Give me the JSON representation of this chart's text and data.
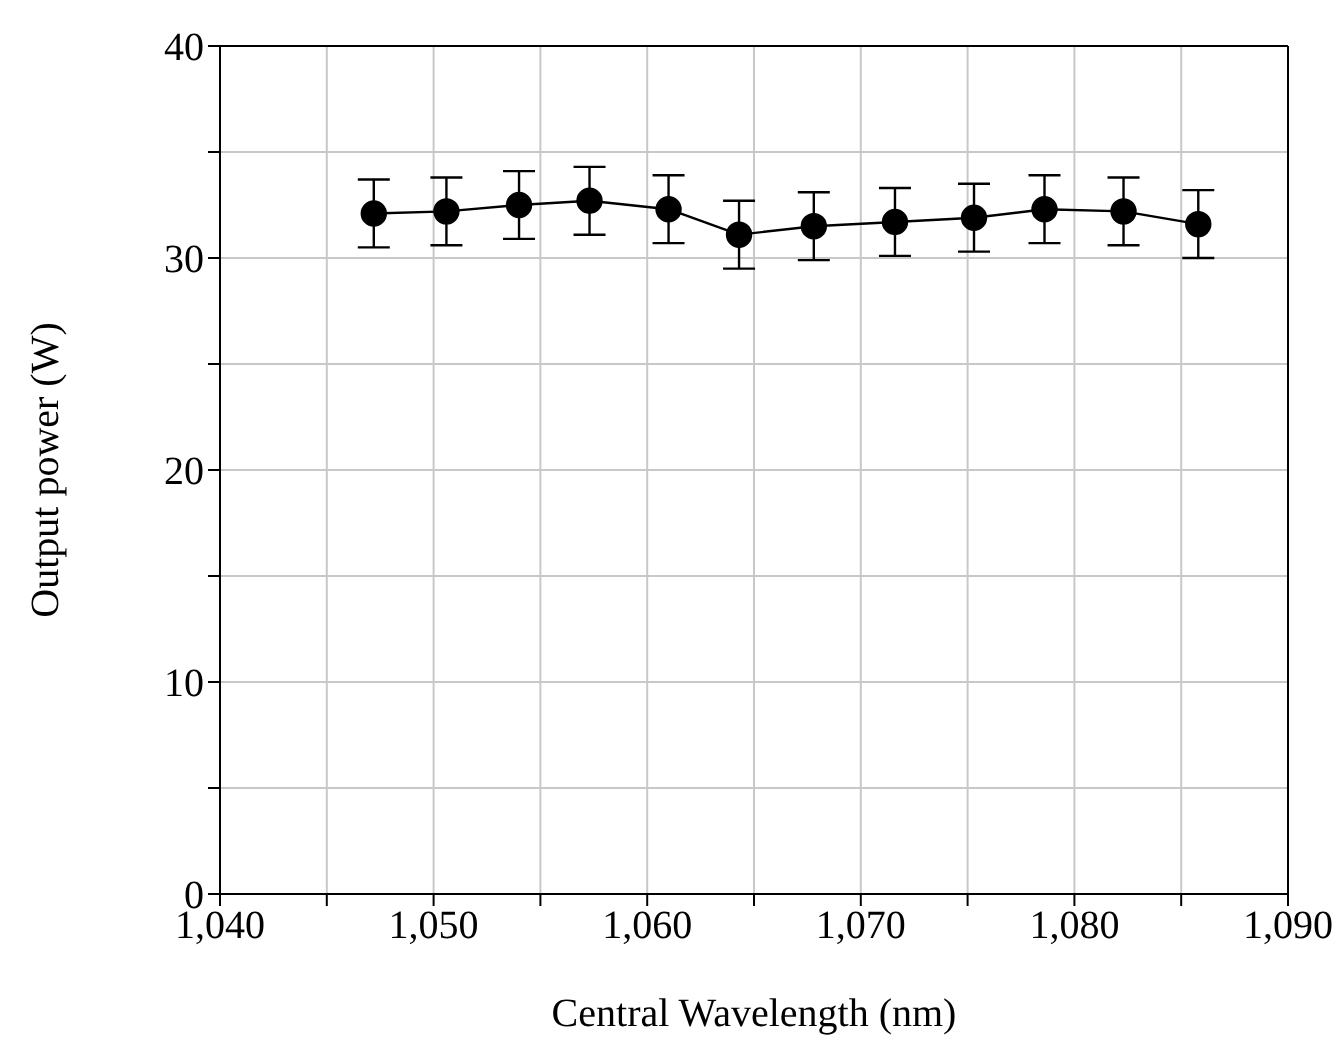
{
  "chart_data": {
    "type": "line",
    "xlabel": "Central Wavelength (nm)",
    "ylabel": "Output power (W)",
    "x": [
      1047.2,
      1050.6,
      1054.0,
      1057.3,
      1061.0,
      1064.3,
      1067.8,
      1071.6,
      1075.3,
      1078.6,
      1082.3,
      1085.8
    ],
    "series": [
      {
        "color": "#000000",
        "values": [
          32.1,
          32.2,
          32.5,
          32.7,
          32.3,
          31.1,
          31.5,
          31.7,
          31.9,
          32.3,
          32.2,
          31.6
        ],
        "errors": [
          1.6,
          1.6,
          1.6,
          1.6,
          1.6,
          1.6,
          1.6,
          1.6,
          1.6,
          1.6,
          1.6,
          1.6
        ]
      }
    ],
    "xlim": [
      1040,
      1090
    ],
    "xticks": [
      {
        "value": 1040,
        "label": "1,040"
      },
      {
        "value": 1045,
        "label": null
      },
      {
        "value": 1050,
        "label": "1,050"
      },
      {
        "value": 1055,
        "label": null
      },
      {
        "value": 1060,
        "label": "1,060"
      },
      {
        "value": 1065,
        "label": null
      },
      {
        "value": 1070,
        "label": "1,070"
      },
      {
        "value": 1075,
        "label": null
      },
      {
        "value": 1080,
        "label": "1,080"
      },
      {
        "value": 1085,
        "label": null
      },
      {
        "value": 1090,
        "label": "1,090"
      }
    ],
    "ylim": [
      0,
      40
    ],
    "yticks": [
      0,
      {
        "value": 5,
        "label": null
      },
      10,
      {
        "value": 15,
        "label": null
      },
      20,
      {
        "value": 25,
        "label": null
      },
      30,
      {
        "value": 35,
        "label": null
      },
      40
    ],
    "grid": true,
    "marker": "circle",
    "line_style": "solid"
  }
}
